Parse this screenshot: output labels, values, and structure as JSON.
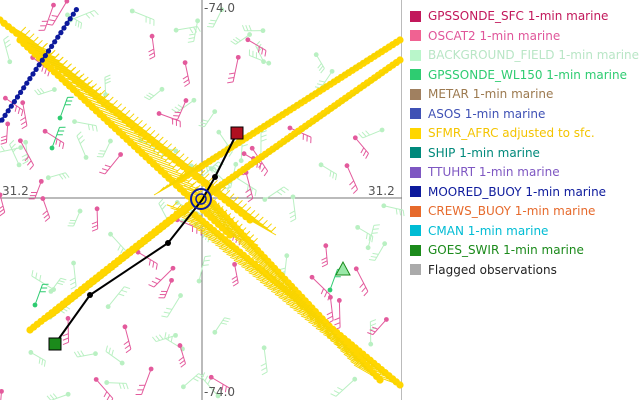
{
  "map": {
    "lat_label": "31.2",
    "lon_label_top": "-74.0",
    "lon_label_bottom": "-74.0"
  },
  "legend": [
    {
      "label": "GPSSONDE_SFC 1-min marine",
      "color": "#c2185b"
    },
    {
      "label": "OSCAT2 1-min marine",
      "color": "#f06292"
    },
    {
      "label": "BACKGROUND_FIELD 1-min marine",
      "color": "#b9f6ca"
    },
    {
      "label": "GPSSONDE_WL150 1-min marine",
      "color": "#2ecc71"
    },
    {
      "label": "METAR 1-min marine",
      "color": "#a08060"
    },
    {
      "label": "ASOS 1-min marine",
      "color": "#3f51b5"
    },
    {
      "label": "SFMR_AFRC adjusted to sfc.",
      "color": "#ffd600"
    },
    {
      "label": "SHIP 1-min marine",
      "color": "#00897b"
    },
    {
      "label": "TTUHRT 1-min marine",
      "color": "#7e57c2"
    },
    {
      "label": "MOORED_BUOY 1-min marine",
      "color": "#0d1a9c"
    },
    {
      "label": "CREWS_BUOY 1-min marine",
      "color": "#e66a2c"
    },
    {
      "label": "CMAN 1-min marine",
      "color": "#00bcd4"
    },
    {
      "label": "GOES_SWIR 1-min marine",
      "color": "#1b8a1b"
    },
    {
      "label": "Flagged observations",
      "color": "#aaaaaa"
    }
  ]
}
